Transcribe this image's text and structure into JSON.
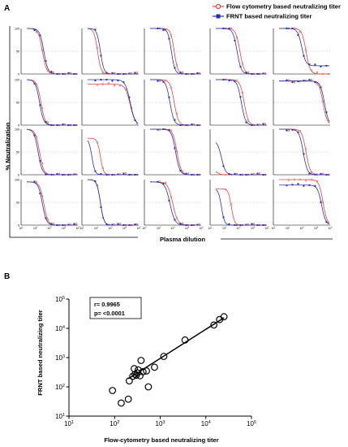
{
  "panel_a": {
    "label": "A",
    "legend": [
      {
        "name": "Flow cytometry based neutralizing titer",
        "color": "#e8433b",
        "marker": "circle-open"
      },
      {
        "name": "FRNT based neutralizing titer",
        "color": "#2531a8",
        "marker": "square-filled"
      }
    ],
    "ylabel": "% Neutralization",
    "xlabel": "Plasma dilution",
    "yticks": [
      "100",
      "50",
      "0"
    ],
    "xtick_exponents": [
      "1",
      "2",
      "3",
      "4",
      "5"
    ],
    "colors": {
      "flow": "#e8433b",
      "frnt": "#2531a8",
      "ref": "#bdbdbd"
    }
  },
  "panel_b": {
    "label": "B",
    "stats": {
      "r": "r= 0.9965",
      "p": "p= <0.0001"
    }
  },
  "chart_data": [
    {
      "type": "line",
      "scale": "log-x",
      "grid": {
        "rows": 4,
        "cols": 5
      },
      "ylim": [
        0,
        100
      ],
      "xlim_log10": [
        1,
        5
      ],
      "reference_line_y": 50,
      "subplots": [
        {
          "frnt_ic50_log10": 2.6,
          "flow_ic50_log10": 2.5,
          "slope": 3.0,
          "top": 100
        },
        {
          "frnt_ic50_log10": 2.3,
          "flow_ic50_log10": 2.1,
          "slope": 3.5,
          "top": 100
        },
        {
          "frnt_ic50_log10": 2.9,
          "flow_ic50_log10": 3.1,
          "slope": 3.5,
          "top": 100
        },
        {
          "frnt_ic50_log10": 2.9,
          "flow_ic50_log10": 3.1,
          "slope": 3.0,
          "top": 100
        },
        {
          "frnt_ic50_log10": 3.0,
          "flow_ic50_log10": 3.3,
          "slope": 3.0,
          "top": 100,
          "frnt_bottom": 18
        },
        {
          "frnt_ic50_log10": 2.3,
          "flow_ic50_log10": 2.4,
          "slope": 3.0,
          "top": 100
        },
        {
          "frnt_ic50_log10": 4.4,
          "flow_ic50_log10": 4.4,
          "slope": 2.5,
          "top": 100,
          "flow_top": 90
        },
        {
          "frnt_ic50_log10": 2.8,
          "flow_ic50_log10": 3.1,
          "slope": 3.0,
          "top": 100
        },
        {
          "frnt_ic50_log10": 3.2,
          "flow_ic50_log10": 3.4,
          "slope": 3.0,
          "top": 100
        },
        {
          "frnt_ic50_log10": 4.6,
          "flow_ic50_log10": 4.5,
          "slope": 3.0,
          "top": 97
        },
        {
          "frnt_ic50_log10": 2.2,
          "flow_ic50_log10": 2.3,
          "slope": 3.0,
          "top": 100
        },
        {
          "frnt_ic50_log10": 1.7,
          "flow_ic50_log10": 2.3,
          "slope": 4.0,
          "top": 80
        },
        {
          "frnt_ic50_log10": 3.2,
          "flow_ic50_log10": 3.3,
          "slope": 3.0,
          "top": 100
        },
        {
          "frnt_ic50_log10": 1.8,
          "flow_ic50_log10": 1.4,
          "slope": 3.0,
          "top": 75,
          "flow_top": 15
        },
        {
          "frnt_ic50_log10": 3.1,
          "flow_ic50_log10": 3.3,
          "slope": 3.0,
          "top": 100
        },
        {
          "frnt_ic50_log10": 2.5,
          "flow_ic50_log10": 2.6,
          "slope": 3.0,
          "top": 95
        },
        {
          "frnt_ic50_log10": 2.3,
          "flow_ic50_log10": 2.3,
          "slope": 3.5,
          "top": 100
        },
        {
          "frnt_ic50_log10": 2.8,
          "flow_ic50_log10": 3.0,
          "slope": 2.5,
          "top": 95
        },
        {
          "frnt_ic50_log10": 1.8,
          "flow_ic50_log10": 2.5,
          "slope": 4.0,
          "top": 80
        },
        {
          "frnt_ic50_log10": 4.4,
          "flow_ic50_log10": 4.5,
          "slope": 3.0,
          "top": 100,
          "frnt_top": 88
        }
      ]
    },
    {
      "type": "scatter",
      "xlabel": "Flow-cytometry based neutralizing titer",
      "ylabel": "FRNT based neutralizing titer",
      "scale": "log-log",
      "xlim": [
        10,
        100000
      ],
      "ylim": [
        10,
        100000
      ],
      "tick_exponents": [
        "1",
        "2",
        "3",
        "4",
        "5"
      ],
      "points": [
        {
          "x": 90,
          "y": 75
        },
        {
          "x": 140,
          "y": 28
        },
        {
          "x": 200,
          "y": 38
        },
        {
          "x": 210,
          "y": 160
        },
        {
          "x": 250,
          "y": 230
        },
        {
          "x": 270,
          "y": 420
        },
        {
          "x": 280,
          "y": 270
        },
        {
          "x": 300,
          "y": 250
        },
        {
          "x": 320,
          "y": 300
        },
        {
          "x": 330,
          "y": 380
        },
        {
          "x": 360,
          "y": 240
        },
        {
          "x": 380,
          "y": 800
        },
        {
          "x": 420,
          "y": 330
        },
        {
          "x": 500,
          "y": 350
        },
        {
          "x": 550,
          "y": 100
        },
        {
          "x": 750,
          "y": 470
        },
        {
          "x": 1200,
          "y": 1100
        },
        {
          "x": 3500,
          "y": 4000
        },
        {
          "x": 15000,
          "y": 13000
        },
        {
          "x": 20000,
          "y": 20000
        },
        {
          "x": 25000,
          "y": 25000
        }
      ],
      "fit": {
        "x": [
          200,
          25000
        ],
        "y": [
          190,
          23000
        ]
      }
    }
  ]
}
